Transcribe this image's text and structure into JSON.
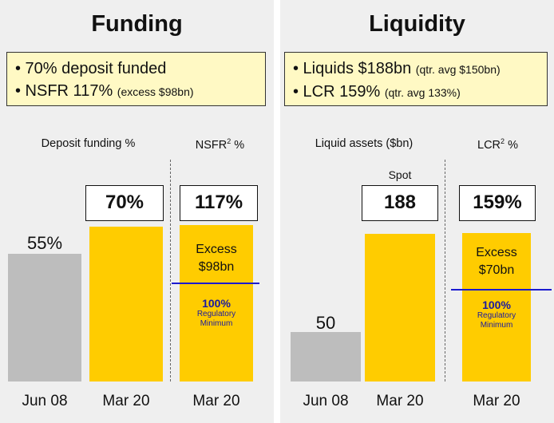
{
  "funding": {
    "title": "Funding",
    "summary": [
      {
        "main": "• 70% deposit funded",
        "note": ""
      },
      {
        "main": "• NSFR 117%",
        "note": "(excess $98bn)"
      }
    ],
    "deposit_title": "Deposit funding %",
    "nsfr_title": "NSFR",
    "nsfr_sup": "2",
    "nsfr_unit": " %",
    "excess_line1": "Excess",
    "excess_line2": "$98bn",
    "reg_pct": "100%",
    "reg_line1": "Regulatory",
    "reg_line2": "Minimum"
  },
  "liquidity": {
    "title": "Liquidity",
    "summary": [
      {
        "main": "• Liquids $188bn",
        "note": "(qtr. avg $150bn)"
      },
      {
        "main": "• LCR 159%",
        "note": "(qtr. avg 133%)"
      }
    ],
    "liquid_title": "Liquid assets ($bn)",
    "spot_label": "Spot",
    "lcr_title": "LCR",
    "lcr_sup": "2",
    "lcr_unit": " %",
    "excess_line1": "Excess",
    "excess_line2": "$70bn",
    "reg_pct": "100%",
    "reg_line1": "Regulatory",
    "reg_line2": "Minimum"
  },
  "colors": {
    "grey_bar": "#bdbdbd",
    "gold_bar": "#ffcc00",
    "regulatory_line": "#1a1ad0",
    "summary_bg": "#fff9c4"
  },
  "chart_data": [
    {
      "type": "bar",
      "title": "Deposit funding %",
      "categories": [
        "Jun 08",
        "Mar 20"
      ],
      "values": [
        55,
        70
      ],
      "labels": [
        "55%",
        "70%"
      ],
      "unit": "%"
    },
    {
      "type": "bar",
      "title": "NSFR² %",
      "categories": [
        "Mar 20"
      ],
      "values": [
        117
      ],
      "labels": [
        "117%"
      ],
      "regulatory_minimum": 100,
      "excess": "$98bn"
    },
    {
      "type": "bar",
      "title": "Liquid assets ($bn)",
      "categories": [
        "Jun 08",
        "Mar 20"
      ],
      "values": [
        50,
        188
      ],
      "labels": [
        "50",
        "188"
      ],
      "annotation": "Spot"
    },
    {
      "type": "bar",
      "title": "LCR² %",
      "categories": [
        "Mar 20"
      ],
      "values": [
        159
      ],
      "labels": [
        "159%"
      ],
      "regulatory_minimum": 100,
      "excess": "$70bn"
    }
  ]
}
